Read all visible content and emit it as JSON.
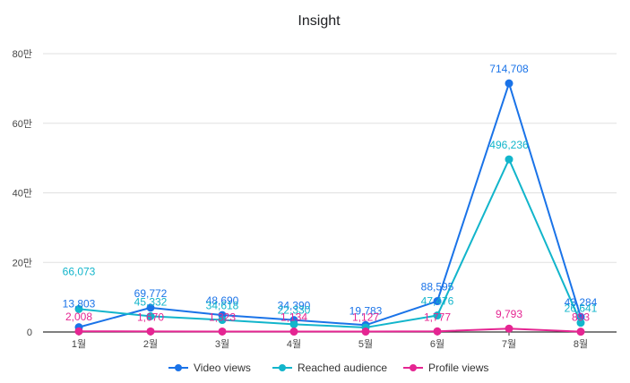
{
  "chart_data": {
    "type": "line",
    "title": "Insight",
    "categories": [
      "1월",
      "2월",
      "3월",
      "4월",
      "5월",
      "6월",
      "7월",
      "8월"
    ],
    "y_ticks": [
      {
        "value": 0,
        "label": "0"
      },
      {
        "value": 200000,
        "label": "20만"
      },
      {
        "value": 400000,
        "label": "40만"
      },
      {
        "value": 600000,
        "label": "60만"
      },
      {
        "value": 800000,
        "label": "80만"
      }
    ],
    "ylim": [
      0,
      800000
    ],
    "grid": true,
    "legend_position": "bottom",
    "series": [
      {
        "name": "Video views",
        "color": "#1a73e8",
        "values": [
          13803,
          69772,
          48690,
          34390,
          19783,
          88595,
          714708,
          43284
        ],
        "labels": [
          "13,803",
          "69,772",
          "48,690",
          "34,390",
          "19,783",
          "88,595",
          "714,708",
          "43,284"
        ]
      },
      {
        "name": "Reached audience",
        "color": "#12b5cb",
        "values": [
          66073,
          45332,
          34618,
          22330,
          13000,
          47476,
          496236,
          26641
        ],
        "labels": [
          "66,073",
          "45,332",
          "34,618",
          "22,330",
          "",
          "47,476",
          "496,236",
          "26,641"
        ]
      },
      {
        "name": "Profile views",
        "color": "#e52592",
        "values": [
          2008,
          1670,
          1323,
          1134,
          1127,
          1777,
          9793,
          893
        ],
        "labels": [
          "2,008",
          "1,670",
          "1,323",
          "1,134",
          "1,127",
          "1,777",
          "9,793",
          "893"
        ]
      }
    ]
  }
}
